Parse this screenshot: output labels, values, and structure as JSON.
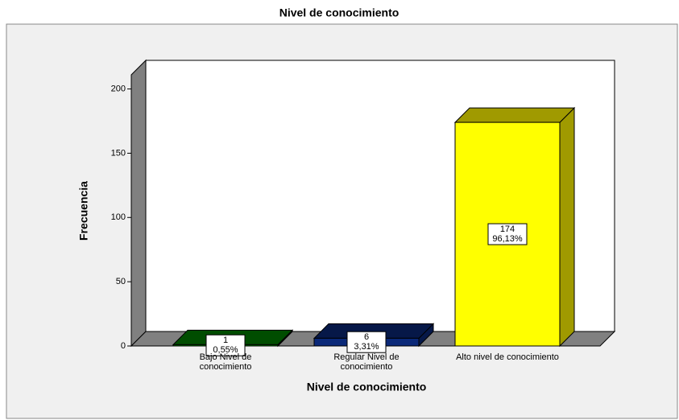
{
  "chart_data": {
    "type": "bar3d",
    "title": "Nivel de conocimiento",
    "x_label": "Nivel de conocimiento",
    "y_label": "Frecuencia",
    "categories": [
      "Bajo Nivel de\nconocimiento",
      "Regular Nivel de\nconocimiento",
      "Alto nivel de conocimiento"
    ],
    "values": [
      1,
      6,
      174
    ],
    "percent_labels": [
      "0,55%",
      "3,31%",
      "96,13%"
    ],
    "colors": [
      "#008000",
      "#0a2878",
      "#ffff00"
    ],
    "side_colors": [
      "#004d00",
      "#061848",
      "#a09a00"
    ],
    "ylim": [
      0,
      211
    ],
    "yticks": [
      0,
      50,
      100,
      150,
      200
    ]
  }
}
